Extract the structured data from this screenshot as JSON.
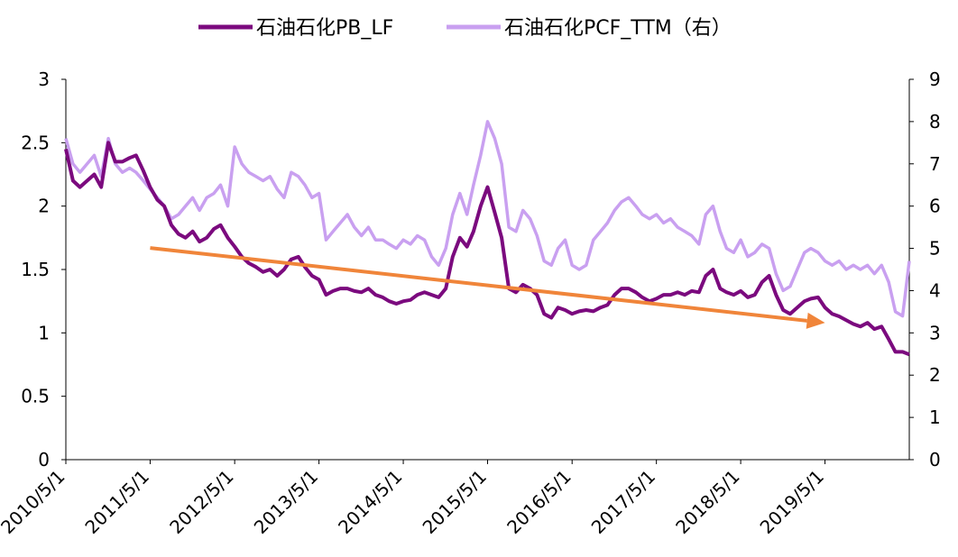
{
  "colors": {
    "pb_series": "#7B0A7E",
    "pcf_series": "#C9A0F0",
    "trend_arrow": "#F0853A",
    "axis": "#000000",
    "background": "#FFFFFF"
  },
  "chart_data": {
    "type": "line",
    "title": "",
    "legend": {
      "placement": "top-center",
      "entries": [
        {
          "label": "石油石化PB_LF",
          "series": "pb"
        },
        {
          "label": "石油石化PCF_TTM（右）",
          "series": "pcf"
        }
      ]
    },
    "x_axis": {
      "type": "date",
      "range": [
        "2010-05-01",
        "2020-04-30"
      ],
      "tick_labels": [
        "2010/5/1",
        "2011/5/1",
        "2012/5/1",
        "2013/5/1",
        "2014/5/1",
        "2015/5/1",
        "2016/5/1",
        "2017/5/1",
        "2018/5/1",
        "2019/5/1"
      ],
      "tick_dates": [
        "2010-05-01",
        "2011-05-01",
        "2012-05-01",
        "2013-05-01",
        "2014-05-01",
        "2015-05-01",
        "2016-05-01",
        "2017-05-01",
        "2018-05-01",
        "2019-05-01"
      ]
    },
    "y_axis_left": {
      "range": [
        0,
        3
      ],
      "tick_labels": [
        "0",
        "0.5",
        "1",
        "1.5",
        "2",
        "2.5",
        "3"
      ],
      "tick_values": [
        0,
        0.5,
        1,
        1.5,
        2,
        2.5,
        3
      ]
    },
    "y_axis_right": {
      "range": [
        0,
        9
      ],
      "tick_labels": [
        "0",
        "1",
        "2",
        "3",
        "4",
        "5",
        "6",
        "7",
        "8",
        "9"
      ],
      "tick_values": [
        0,
        1,
        2,
        3,
        4,
        5,
        6,
        7,
        8,
        9
      ]
    },
    "grid": false,
    "series": [
      {
        "name": "石油石化PB_LF",
        "axis": "left",
        "points": [
          [
            "2010-05-01",
            2.45
          ],
          [
            "2010-06-01",
            2.2
          ],
          [
            "2010-07-01",
            2.15
          ],
          [
            "2010-08-01",
            2.2
          ],
          [
            "2010-09-01",
            2.25
          ],
          [
            "2010-10-01",
            2.15
          ],
          [
            "2010-11-01",
            2.5
          ],
          [
            "2010-12-01",
            2.35
          ],
          [
            "2011-01-01",
            2.35
          ],
          [
            "2011-02-01",
            2.38
          ],
          [
            "2011-03-01",
            2.4
          ],
          [
            "2011-04-01",
            2.28
          ],
          [
            "2011-05-01",
            2.15
          ],
          [
            "2011-06-01",
            2.05
          ],
          [
            "2011-07-01",
            2.0
          ],
          [
            "2011-08-01",
            1.85
          ],
          [
            "2011-09-01",
            1.78
          ],
          [
            "2011-10-01",
            1.75
          ],
          [
            "2011-11-01",
            1.8
          ],
          [
            "2011-12-01",
            1.72
          ],
          [
            "2012-01-01",
            1.75
          ],
          [
            "2012-02-01",
            1.82
          ],
          [
            "2012-03-01",
            1.85
          ],
          [
            "2012-04-01",
            1.75
          ],
          [
            "2012-05-01",
            1.68
          ],
          [
            "2012-06-01",
            1.6
          ],
          [
            "2012-07-01",
            1.55
          ],
          [
            "2012-08-01",
            1.52
          ],
          [
            "2012-09-01",
            1.48
          ],
          [
            "2012-10-01",
            1.5
          ],
          [
            "2012-11-01",
            1.45
          ],
          [
            "2012-12-01",
            1.5
          ],
          [
            "2013-01-01",
            1.58
          ],
          [
            "2013-02-01",
            1.6
          ],
          [
            "2013-03-01",
            1.52
          ],
          [
            "2013-04-01",
            1.45
          ],
          [
            "2013-05-01",
            1.42
          ],
          [
            "2013-06-01",
            1.3
          ],
          [
            "2013-07-01",
            1.33
          ],
          [
            "2013-08-01",
            1.35
          ],
          [
            "2013-09-01",
            1.35
          ],
          [
            "2013-10-01",
            1.33
          ],
          [
            "2013-11-01",
            1.32
          ],
          [
            "2013-12-01",
            1.35
          ],
          [
            "2014-01-01",
            1.3
          ],
          [
            "2014-02-01",
            1.28
          ],
          [
            "2014-03-01",
            1.25
          ],
          [
            "2014-04-01",
            1.23
          ],
          [
            "2014-05-01",
            1.25
          ],
          [
            "2014-06-01",
            1.26
          ],
          [
            "2014-07-01",
            1.3
          ],
          [
            "2014-08-01",
            1.32
          ],
          [
            "2014-09-01",
            1.3
          ],
          [
            "2014-10-01",
            1.28
          ],
          [
            "2014-11-01",
            1.35
          ],
          [
            "2014-12-01",
            1.6
          ],
          [
            "2015-01-01",
            1.75
          ],
          [
            "2015-02-01",
            1.68
          ],
          [
            "2015-03-01",
            1.8
          ],
          [
            "2015-04-01",
            2.0
          ],
          [
            "2015-05-01",
            2.15
          ],
          [
            "2015-06-01",
            1.95
          ],
          [
            "2015-07-01",
            1.75
          ],
          [
            "2015-08-01",
            1.35
          ],
          [
            "2015-09-01",
            1.32
          ],
          [
            "2015-10-01",
            1.38
          ],
          [
            "2015-11-01",
            1.35
          ],
          [
            "2015-12-01",
            1.3
          ],
          [
            "2016-01-01",
            1.15
          ],
          [
            "2016-02-01",
            1.12
          ],
          [
            "2016-03-01",
            1.2
          ],
          [
            "2016-04-01",
            1.18
          ],
          [
            "2016-05-01",
            1.15
          ],
          [
            "2016-06-01",
            1.17
          ],
          [
            "2016-07-01",
            1.18
          ],
          [
            "2016-08-01",
            1.17
          ],
          [
            "2016-09-01",
            1.2
          ],
          [
            "2016-10-01",
            1.22
          ],
          [
            "2016-11-01",
            1.3
          ],
          [
            "2016-12-01",
            1.35
          ],
          [
            "2017-01-01",
            1.35
          ],
          [
            "2017-02-01",
            1.32
          ],
          [
            "2017-03-01",
            1.28
          ],
          [
            "2017-04-01",
            1.25
          ],
          [
            "2017-05-01",
            1.27
          ],
          [
            "2017-06-01",
            1.3
          ],
          [
            "2017-07-01",
            1.3
          ],
          [
            "2017-08-01",
            1.32
          ],
          [
            "2017-09-01",
            1.3
          ],
          [
            "2017-10-01",
            1.33
          ],
          [
            "2017-11-01",
            1.32
          ],
          [
            "2017-12-01",
            1.45
          ],
          [
            "2018-01-01",
            1.5
          ],
          [
            "2018-02-01",
            1.35
          ],
          [
            "2018-03-01",
            1.32
          ],
          [
            "2018-04-01",
            1.3
          ],
          [
            "2018-05-01",
            1.33
          ],
          [
            "2018-06-01",
            1.28
          ],
          [
            "2018-07-01",
            1.3
          ],
          [
            "2018-08-01",
            1.4
          ],
          [
            "2018-09-01",
            1.45
          ],
          [
            "2018-10-01",
            1.3
          ],
          [
            "2018-11-01",
            1.18
          ],
          [
            "2018-12-01",
            1.15
          ],
          [
            "2019-01-01",
            1.2
          ],
          [
            "2019-02-01",
            1.25
          ],
          [
            "2019-03-01",
            1.27
          ],
          [
            "2019-04-01",
            1.28
          ],
          [
            "2019-05-01",
            1.2
          ],
          [
            "2019-06-01",
            1.15
          ],
          [
            "2019-07-01",
            1.13
          ],
          [
            "2019-08-01",
            1.1
          ],
          [
            "2019-09-01",
            1.07
          ],
          [
            "2019-10-01",
            1.05
          ],
          [
            "2019-11-01",
            1.08
          ],
          [
            "2019-12-01",
            1.03
          ],
          [
            "2020-01-01",
            1.05
          ],
          [
            "2020-02-01",
            0.95
          ],
          [
            "2020-03-01",
            0.85
          ],
          [
            "2020-04-01",
            0.85
          ],
          [
            "2020-04-30",
            0.83
          ]
        ]
      },
      {
        "name": "石油石化PCF_TTM（右）",
        "axis": "right",
        "points": [
          [
            "2010-05-01",
            7.6
          ],
          [
            "2010-06-01",
            7.0
          ],
          [
            "2010-07-01",
            6.8
          ],
          [
            "2010-08-01",
            7.0
          ],
          [
            "2010-09-01",
            7.2
          ],
          [
            "2010-10-01",
            6.7
          ],
          [
            "2010-11-01",
            7.6
          ],
          [
            "2010-12-01",
            7.0
          ],
          [
            "2011-01-01",
            6.8
          ],
          [
            "2011-02-01",
            6.9
          ],
          [
            "2011-03-01",
            6.8
          ],
          [
            "2011-04-01",
            6.6
          ],
          [
            "2011-05-01",
            6.4
          ],
          [
            "2011-06-01",
            6.2
          ],
          [
            "2011-07-01",
            6.0
          ],
          [
            "2011-08-01",
            5.7
          ],
          [
            "2011-09-01",
            5.8
          ],
          [
            "2011-10-01",
            6.0
          ],
          [
            "2011-11-01",
            6.2
          ],
          [
            "2011-12-01",
            5.9
          ],
          [
            "2012-01-01",
            6.2
          ],
          [
            "2012-02-01",
            6.3
          ],
          [
            "2012-03-01",
            6.5
          ],
          [
            "2012-04-01",
            6.0
          ],
          [
            "2012-05-01",
            7.4
          ],
          [
            "2012-06-01",
            7.0
          ],
          [
            "2012-07-01",
            6.8
          ],
          [
            "2012-08-01",
            6.7
          ],
          [
            "2012-09-01",
            6.6
          ],
          [
            "2012-10-01",
            6.7
          ],
          [
            "2012-11-01",
            6.4
          ],
          [
            "2012-12-01",
            6.2
          ],
          [
            "2013-01-01",
            6.8
          ],
          [
            "2013-02-01",
            6.7
          ],
          [
            "2013-03-01",
            6.5
          ],
          [
            "2013-04-01",
            6.2
          ],
          [
            "2013-05-01",
            6.3
          ],
          [
            "2013-06-01",
            5.2
          ],
          [
            "2013-07-01",
            5.4
          ],
          [
            "2013-08-01",
            5.6
          ],
          [
            "2013-09-01",
            5.8
          ],
          [
            "2013-10-01",
            5.5
          ],
          [
            "2013-11-01",
            5.3
          ],
          [
            "2013-12-01",
            5.5
          ],
          [
            "2014-01-01",
            5.2
          ],
          [
            "2014-02-01",
            5.2
          ],
          [
            "2014-03-01",
            5.1
          ],
          [
            "2014-04-01",
            5.0
          ],
          [
            "2014-05-01",
            5.2
          ],
          [
            "2014-06-01",
            5.1
          ],
          [
            "2014-07-01",
            5.3
          ],
          [
            "2014-08-01",
            5.2
          ],
          [
            "2014-09-01",
            4.8
          ],
          [
            "2014-10-01",
            4.6
          ],
          [
            "2014-11-01",
            5.0
          ],
          [
            "2014-12-01",
            5.8
          ],
          [
            "2015-01-01",
            6.3
          ],
          [
            "2015-02-01",
            5.8
          ],
          [
            "2015-03-01",
            6.5
          ],
          [
            "2015-04-01",
            7.2
          ],
          [
            "2015-05-01",
            8.0
          ],
          [
            "2015-06-01",
            7.6
          ],
          [
            "2015-07-01",
            7.0
          ],
          [
            "2015-08-01",
            5.5
          ],
          [
            "2015-09-01",
            5.4
          ],
          [
            "2015-10-01",
            5.9
          ],
          [
            "2015-11-01",
            5.7
          ],
          [
            "2015-12-01",
            5.3
          ],
          [
            "2016-01-01",
            4.7
          ],
          [
            "2016-02-01",
            4.6
          ],
          [
            "2016-03-01",
            5.0
          ],
          [
            "2016-04-01",
            5.2
          ],
          [
            "2016-05-01",
            4.6
          ],
          [
            "2016-06-01",
            4.5
          ],
          [
            "2016-07-01",
            4.6
          ],
          [
            "2016-08-01",
            5.2
          ],
          [
            "2016-09-01",
            5.4
          ],
          [
            "2016-10-01",
            5.6
          ],
          [
            "2016-11-01",
            5.9
          ],
          [
            "2016-12-01",
            6.1
          ],
          [
            "2017-01-01",
            6.2
          ],
          [
            "2017-02-01",
            6.0
          ],
          [
            "2017-03-01",
            5.8
          ],
          [
            "2017-04-01",
            5.7
          ],
          [
            "2017-05-01",
            5.8
          ],
          [
            "2017-06-01",
            5.6
          ],
          [
            "2017-07-01",
            5.7
          ],
          [
            "2017-08-01",
            5.5
          ],
          [
            "2017-09-01",
            5.4
          ],
          [
            "2017-10-01",
            5.3
          ],
          [
            "2017-11-01",
            5.1
          ],
          [
            "2017-12-01",
            5.8
          ],
          [
            "2018-01-01",
            6.0
          ],
          [
            "2018-02-01",
            5.4
          ],
          [
            "2018-03-01",
            5.0
          ],
          [
            "2018-04-01",
            4.9
          ],
          [
            "2018-05-01",
            5.2
          ],
          [
            "2018-06-01",
            4.8
          ],
          [
            "2018-07-01",
            4.9
          ],
          [
            "2018-08-01",
            5.1
          ],
          [
            "2018-09-01",
            5.0
          ],
          [
            "2018-10-01",
            4.4
          ],
          [
            "2018-11-01",
            4.0
          ],
          [
            "2018-12-01",
            4.1
          ],
          [
            "2019-01-01",
            4.5
          ],
          [
            "2019-02-01",
            4.9
          ],
          [
            "2019-03-01",
            5.0
          ],
          [
            "2019-04-01",
            4.9
          ],
          [
            "2019-05-01",
            4.7
          ],
          [
            "2019-06-01",
            4.6
          ],
          [
            "2019-07-01",
            4.7
          ],
          [
            "2019-08-01",
            4.5
          ],
          [
            "2019-09-01",
            4.6
          ],
          [
            "2019-10-01",
            4.5
          ],
          [
            "2019-11-01",
            4.6
          ],
          [
            "2019-12-01",
            4.4
          ],
          [
            "2020-01-01",
            4.6
          ],
          [
            "2020-02-01",
            4.2
          ],
          [
            "2020-03-01",
            3.5
          ],
          [
            "2020-04-01",
            3.4
          ],
          [
            "2020-04-30",
            4.7
          ]
        ]
      }
    ],
    "annotations": [
      {
        "type": "arrow",
        "axis": "left",
        "from": [
          "2011-05-01",
          1.67
        ],
        "to": [
          "2019-05-01",
          1.08
        ]
      }
    ]
  }
}
